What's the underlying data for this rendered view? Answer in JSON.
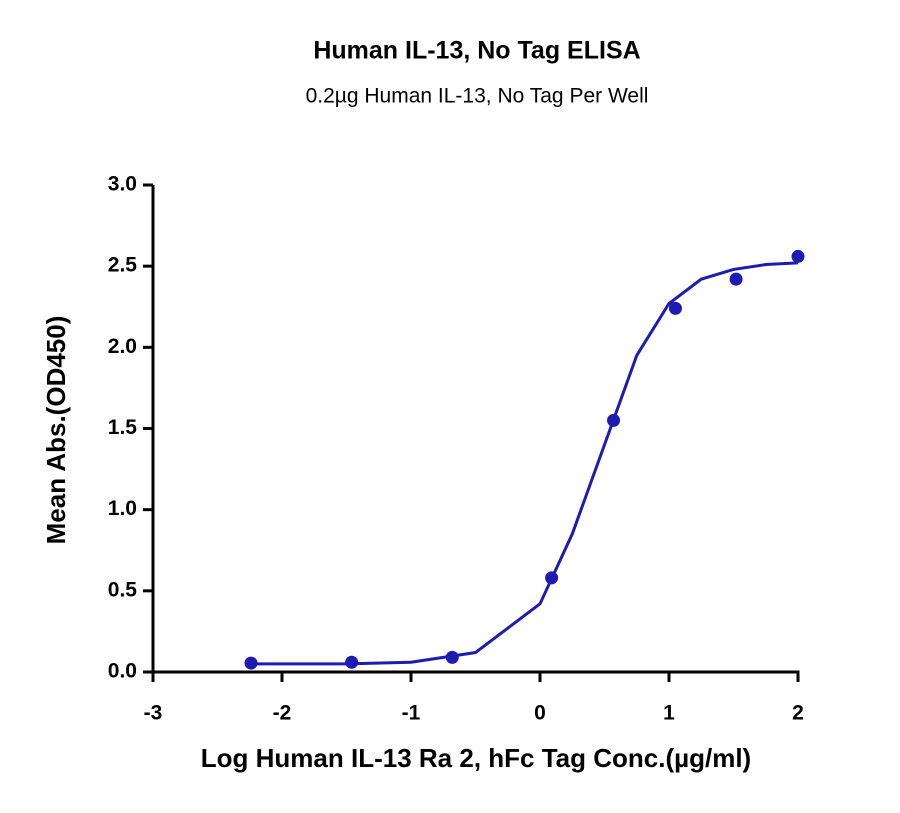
{
  "chart_data": {
    "type": "scatter",
    "title": "Human IL-13, No Tag ELISA",
    "subtitle": "0.2µg Human IL-13, No Tag Per Well",
    "x_label": "Log Human IL-13 Ra 2, hFc Tag Conc.(µg/ml)",
    "y_label": "Mean Abs.(OD450)",
    "xlim": [
      -3,
      2
    ],
    "xticks": [
      -3,
      -2,
      -1,
      0,
      1,
      2
    ],
    "ylim": [
      0,
      3
    ],
    "yticks": [
      {
        "value": 0,
        "label": "0.0"
      },
      {
        "value": 0.5,
        "label": "0.5"
      },
      {
        "value": 1,
        "label": "1.0"
      },
      {
        "value": 1.5,
        "label": "1.5"
      },
      {
        "value": 2,
        "label": "2.0"
      },
      {
        "value": 2.5,
        "label": "2.5"
      },
      {
        "value": 3,
        "label": "3.0"
      }
    ],
    "color": "#1c1cb4",
    "points": {
      "x": [
        -2.24,
        -1.46,
        -0.68,
        0.09,
        0.57,
        1.05,
        1.52,
        2.0
      ],
      "values": [
        0.055,
        0.06,
        0.09,
        0.58,
        1.55,
        2.24,
        2.42,
        2.56
      ]
    },
    "fit": {
      "x": [
        -2.24,
        -1.5,
        -1,
        -0.5,
        0,
        0.25,
        0.5,
        0.75,
        1,
        1.25,
        1.5,
        1.75,
        2
      ],
      "values": [
        0.05,
        0.05,
        0.06,
        0.12,
        0.42,
        0.85,
        1.4,
        1.95,
        2.27,
        2.42,
        2.48,
        2.51,
        2.52
      ]
    }
  }
}
